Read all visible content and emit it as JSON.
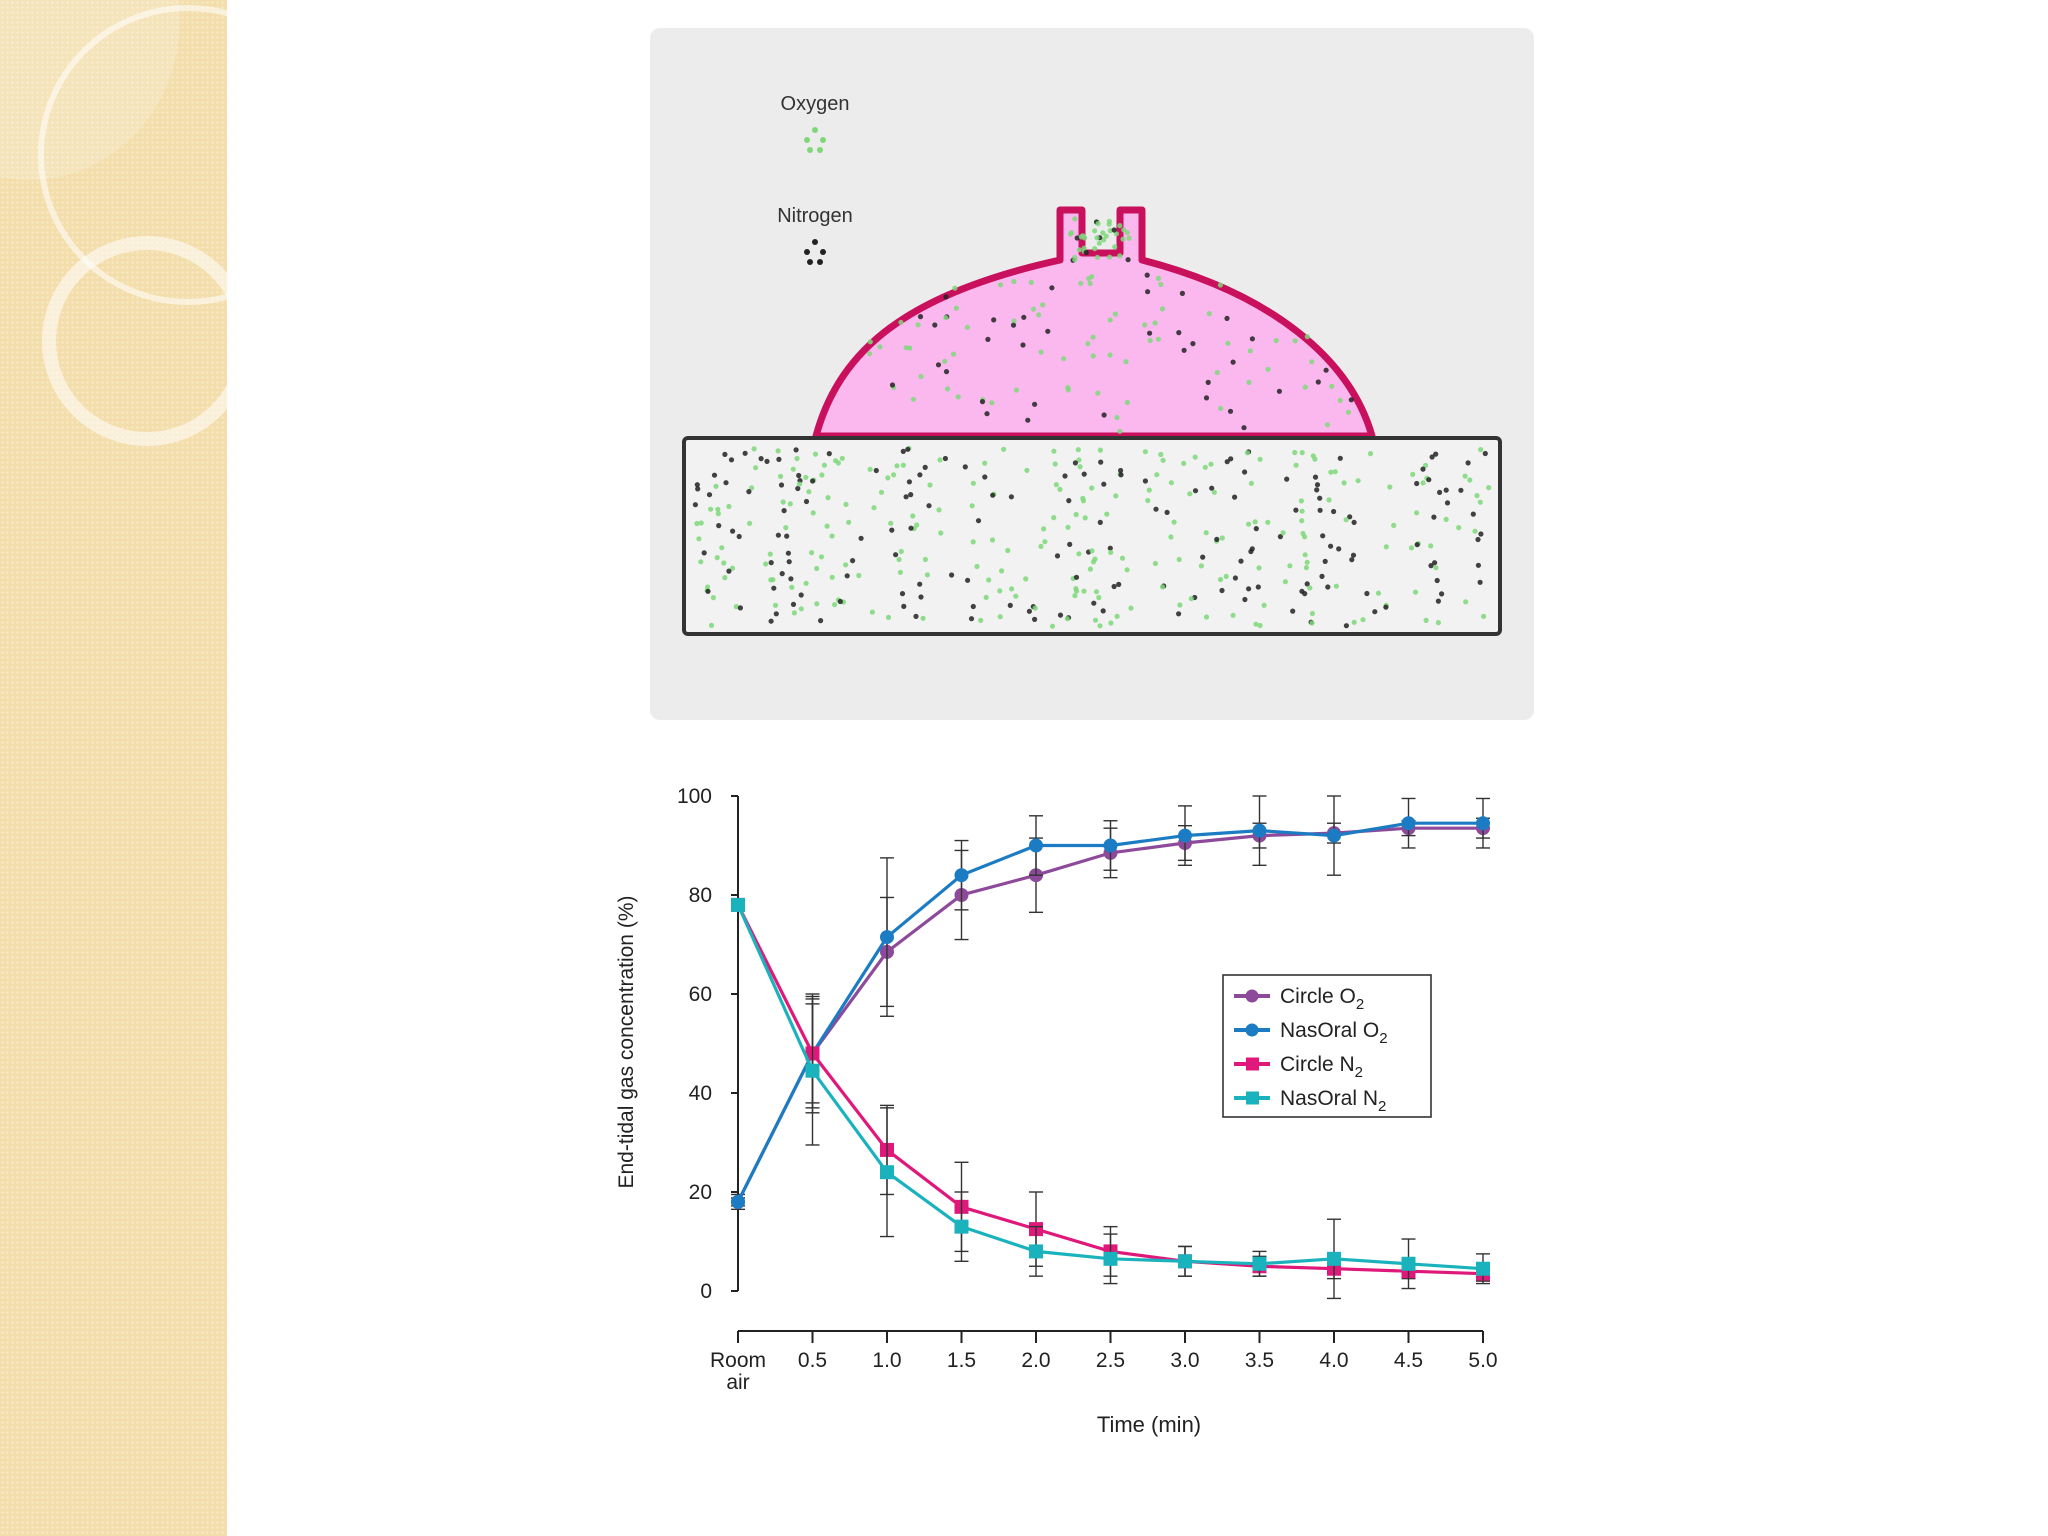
{
  "diagram": {
    "legend": [
      {
        "label": "Oxygen",
        "color": "#7ed87a"
      },
      {
        "label": "Nitrogen",
        "color": "#222222"
      }
    ],
    "colors": {
      "dome_fill": "#fbb8ef",
      "dome_stroke": "#c8105c",
      "panel": "#ececec",
      "box_stroke": "#333333"
    }
  },
  "chart_data": {
    "type": "line",
    "title": "",
    "xlabel": "Time (min)",
    "ylabel": "End-tidal gas concentration (%)",
    "x": [
      "Room air",
      0.5,
      1.0,
      1.5,
      2.0,
      2.5,
      3.0,
      3.5,
      4.0,
      4.5,
      5.0
    ],
    "x_tick_labels": [
      [
        "Room",
        "air"
      ],
      [
        "0.5"
      ],
      [
        "1.0"
      ],
      [
        "1.5"
      ],
      [
        "2.0"
      ],
      [
        "2.5"
      ],
      [
        "3.0"
      ],
      [
        "3.5"
      ],
      [
        "4.0"
      ],
      [
        "4.5"
      ],
      [
        "5.0"
      ]
    ],
    "y_ticks": [
      0,
      20,
      40,
      60,
      80,
      100
    ],
    "ylim": [
      0,
      100
    ],
    "grid": false,
    "legend_position": "right-middle",
    "series": [
      {
        "name": "Circle O",
        "sub": "2",
        "color": "#8e4a9a",
        "marker": "circle",
        "values": [
          18,
          48,
          68.5,
          80,
          84,
          88.5,
          90.5,
          92,
          92.5,
          93.5,
          93.5
        ],
        "err": [
          1.5,
          11,
          11,
          9,
          7.5,
          5,
          3.5,
          2.5,
          2,
          1.5,
          2
        ]
      },
      {
        "name": "NasOral O",
        "sub": "2",
        "color": "#1b7cc4",
        "marker": "circle",
        "values": [
          18,
          48,
          71.5,
          84,
          90,
          90,
          92,
          93,
          92,
          94.5,
          94.5
        ],
        "err": [
          0.8,
          10,
          16,
          7,
          6,
          5,
          6,
          7,
          8,
          5,
          5
        ]
      },
      {
        "name": "Circle N",
        "sub": "2",
        "color": "#e0187a",
        "marker": "square",
        "values": [
          78,
          48,
          28.5,
          17,
          12.5,
          8,
          6,
          5,
          4.5,
          4,
          3.5
        ],
        "err": [
          0.5,
          12,
          9,
          9,
          7.5,
          5,
          3,
          2,
          2,
          1.5,
          1.5
        ]
      },
      {
        "name": "NasOral N",
        "sub": "2",
        "color": "#1ab3bd",
        "marker": "square",
        "values": [
          78,
          44.5,
          24,
          13,
          8,
          6.5,
          6,
          5.5,
          6.5,
          5.5,
          4.5
        ],
        "err": [
          0.5,
          15,
          13,
          7,
          5,
          5,
          3,
          2.5,
          8,
          5,
          3
        ]
      }
    ]
  }
}
